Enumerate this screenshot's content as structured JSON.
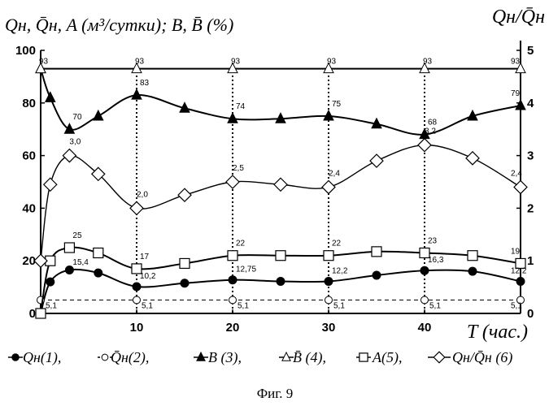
{
  "chart_data": {
    "type": "line",
    "left_axis_title": "Qн, Q̄н, A (м³/сутки);   B, B̄  (%)",
    "right_axis_title": "Qн/Q̄н",
    "x_axis_title": "T (час.)",
    "xlim": [
      0,
      50
    ],
    "ylim_left": [
      0,
      100
    ],
    "ylim_right": [
      0,
      5
    ],
    "x_ticks": [
      "10",
      "20",
      "30",
      "40"
    ],
    "y_ticks_left": [
      "0",
      "20",
      "40",
      "60",
      "80",
      "100"
    ],
    "y_ticks_right": [
      "0",
      "1",
      "2",
      "3",
      "4",
      "5"
    ],
    "grid": "dotted vertical lines at x = 10, 20, 30, 40",
    "caption": "Фиг. 9",
    "series": [
      {
        "id": "s1",
        "legend": "Qн(1),",
        "marker": "filled-circle",
        "axis": "left",
        "x": [
          0,
          1,
          3,
          6,
          10,
          15,
          20,
          25,
          30,
          35,
          40,
          45,
          50
        ],
        "y": [
          0,
          12,
          16.5,
          15.4,
          10.2,
          11.5,
          12.75,
          12.2,
          12.2,
          14.5,
          16.3,
          16,
          12.2
        ],
        "labels": [
          {
            "x": 3,
            "y": 15.4,
            "text": "15,4"
          },
          {
            "x": 10,
            "y": 10.2,
            "text": "10,2"
          },
          {
            "x": 20,
            "y": 12.75,
            "text": "12,75"
          },
          {
            "x": 30,
            "y": 12.2,
            "text": "12,2"
          },
          {
            "x": 40,
            "y": 16.3,
            "text": "16,3"
          },
          {
            "x": 50,
            "y": 12.2,
            "text": "12,2"
          }
        ]
      },
      {
        "id": "s2",
        "legend": "Q̄н(2),",
        "marker": "open-circle",
        "axis": "left",
        "x": [
          0,
          10,
          20,
          30,
          40,
          50
        ],
        "y": [
          5.1,
          5.1,
          5.1,
          5.1,
          5.1,
          5.1
        ],
        "labels": [
          {
            "x": 0,
            "y": 5.1,
            "text": "5,1"
          },
          {
            "x": 10,
            "y": 5.1,
            "text": "5,1"
          },
          {
            "x": 20,
            "y": 5.1,
            "text": "5,1"
          },
          {
            "x": 30,
            "y": 5.1,
            "text": "5,1"
          },
          {
            "x": 40,
            "y": 5.1,
            "text": "5,1"
          },
          {
            "x": 50,
            "y": 5.1,
            "text": "5,1"
          }
        ]
      },
      {
        "id": "s3",
        "legend": "B (3),",
        "marker": "filled-triangle",
        "axis": "left",
        "x": [
          0,
          1,
          3,
          6,
          10,
          15,
          20,
          25,
          30,
          35,
          40,
          45,
          50
        ],
        "y": [
          93,
          82,
          70,
          75,
          83,
          78,
          74,
          74,
          75,
          72,
          68,
          75,
          79
        ],
        "labels": [
          {
            "x": 3,
            "y": 70,
            "text": "70"
          },
          {
            "x": 10,
            "y": 83,
            "text": "83"
          },
          {
            "x": 20,
            "y": 74,
            "text": "74"
          },
          {
            "x": 30,
            "y": 75,
            "text": "75"
          },
          {
            "x": 40,
            "y": 68,
            "text": "68"
          },
          {
            "x": 50,
            "y": 79,
            "text": "79"
          }
        ]
      },
      {
        "id": "s4",
        "legend": "B̄ (4),",
        "marker": "open-triangle",
        "axis": "left",
        "x": [
          0,
          10,
          20,
          30,
          40,
          50
        ],
        "y": [
          93,
          93,
          93,
          93,
          93,
          93
        ],
        "labels": [
          {
            "x": 0,
            "y": 93,
            "text": "93"
          },
          {
            "x": 10,
            "y": 93,
            "text": "93"
          },
          {
            "x": 20,
            "y": 93,
            "text": "93"
          },
          {
            "x": 30,
            "y": 93,
            "text": "93"
          },
          {
            "x": 40,
            "y": 93,
            "text": "93"
          },
          {
            "x": 50,
            "y": 93,
            "text": "93"
          }
        ]
      },
      {
        "id": "s5",
        "legend": "A(5),",
        "marker": "open-square",
        "axis": "left",
        "x": [
          0,
          1,
          3,
          6,
          10,
          15,
          20,
          25,
          30,
          35,
          40,
          45,
          50
        ],
        "y": [
          0,
          20,
          25,
          23,
          17,
          19,
          22,
          22,
          22,
          23.5,
          23,
          22,
          19
        ],
        "labels": [
          {
            "x": 3,
            "y": 25,
            "text": "25"
          },
          {
            "x": 10,
            "y": 17,
            "text": "17"
          },
          {
            "x": 20,
            "y": 22,
            "text": "22"
          },
          {
            "x": 30,
            "y": 22,
            "text": "22"
          },
          {
            "x": 40,
            "y": 23,
            "text": "23"
          },
          {
            "x": 50,
            "y": 19,
            "text": "19"
          }
        ]
      },
      {
        "id": "s6",
        "legend": "Qн/Q̄н (6)",
        "marker": "open-diamond",
        "axis": "right",
        "x": [
          0,
          1,
          3,
          6,
          10,
          15,
          20,
          25,
          30,
          35,
          40,
          45,
          50
        ],
        "y": [
          1.0,
          2.45,
          3.0,
          2.65,
          2.0,
          2.25,
          2.5,
          2.45,
          2.4,
          2.9,
          3.2,
          2.95,
          2.4
        ],
        "labels": [
          {
            "x": 3,
            "y": 3.0,
            "text": "3,0"
          },
          {
            "x": 10,
            "y": 2.0,
            "text": "2,0"
          },
          {
            "x": 20,
            "y": 2.5,
            "text": "2,5"
          },
          {
            "x": 30,
            "y": 2.4,
            "text": "2,4"
          },
          {
            "x": 40,
            "y": 3.2,
            "text": "3,2"
          },
          {
            "x": 50,
            "y": 2.4,
            "text": "2,4"
          }
        ]
      }
    ]
  }
}
